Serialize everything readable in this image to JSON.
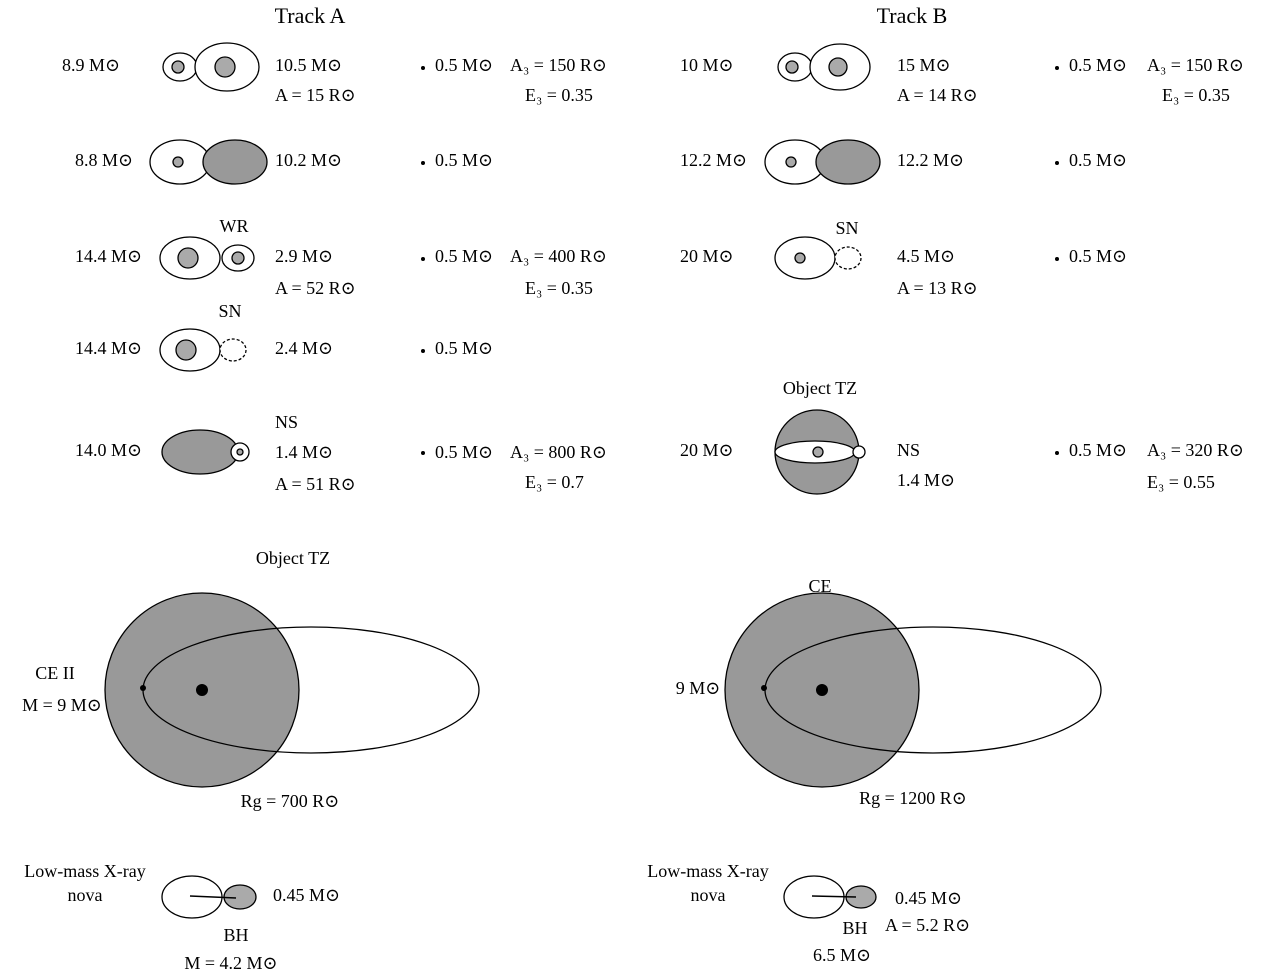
{
  "track_a": {
    "title": "Track A",
    "rows": [
      {
        "left": "8.9 M⊙",
        "right": [
          "10.5 M⊙",
          "A = 15 R⊙"
        ],
        "third": "0.5 M⊙",
        "orbit": [
          "A₃ = 150 R⊙",
          "E₃ = 0.35"
        ]
      },
      {
        "left": "8.8 M⊙",
        "right": [
          "10.2 M⊙"
        ],
        "third": "0.5 M⊙"
      },
      {
        "label": "WR",
        "left": "14.4 M⊙",
        "right": [
          "2.9 M⊙",
          "A = 52 R⊙"
        ],
        "third": "0.5 M⊙",
        "orbit": [
          "A₃ = 400 R⊙",
          "E₃ = 0.35"
        ]
      },
      {
        "label": "SN",
        "left": "14.4 M⊙",
        "right": [
          "2.4 M⊙"
        ],
        "third": "0.5 M⊙"
      },
      {
        "left": "14.0 M⊙",
        "right": [
          "NS",
          "1.4 M⊙",
          "A = 51 R⊙"
        ],
        "third": "0.5 M⊙",
        "orbit": [
          "A₃ = 800 R⊙",
          "E₃ = 0.7"
        ]
      }
    ],
    "envelope": {
      "title": "Object TZ",
      "mass": [
        "CE II",
        "M = 9 M⊙"
      ],
      "radius": "Rg = 700 R⊙"
    },
    "nova": {
      "label": [
        "Low-mass X-ray",
        "nova"
      ],
      "mass": [
        "0.45 M⊙"
      ],
      "bh": [
        "BH",
        "M = 4.2 M⊙"
      ]
    }
  },
  "track_b": {
    "title": "Track B",
    "rows": [
      {
        "left": "10 M⊙",
        "right": [
          "15 M⊙",
          "A = 14 R⊙"
        ],
        "third": "0.5 M⊙",
        "orbit": [
          "A₃ = 150 R⊙",
          "E₃ = 0.35"
        ]
      },
      {
        "left": "12.2 M⊙",
        "right": [
          "12.2 M⊙"
        ],
        "third": "0.5 M⊙"
      },
      {
        "label": "SN",
        "left": "20 M⊙",
        "right": [
          "4.5 M⊙",
          "A = 13 R⊙"
        ],
        "third": "0.5 M⊙"
      },
      {
        "label": "Object TZ",
        "left": "20 M⊙",
        "right": [
          "NS",
          "1.4 M⊙"
        ],
        "third": "0.5 M⊙",
        "orbit": [
          "A₃ = 320 R⊙",
          "E₃ = 0.55"
        ]
      }
    ],
    "envelope": {
      "title": "CE",
      "mass": [
        "9 M⊙"
      ],
      "radius": "Rg = 1200 R⊙"
    },
    "nova": {
      "label": [
        "Low-mass X-ray",
        "nova"
      ],
      "mass": [
        "0.45 M⊙",
        "A = 5.2 R⊙"
      ],
      "bh": [
        "BH",
        "6.5 M⊙"
      ]
    }
  }
}
